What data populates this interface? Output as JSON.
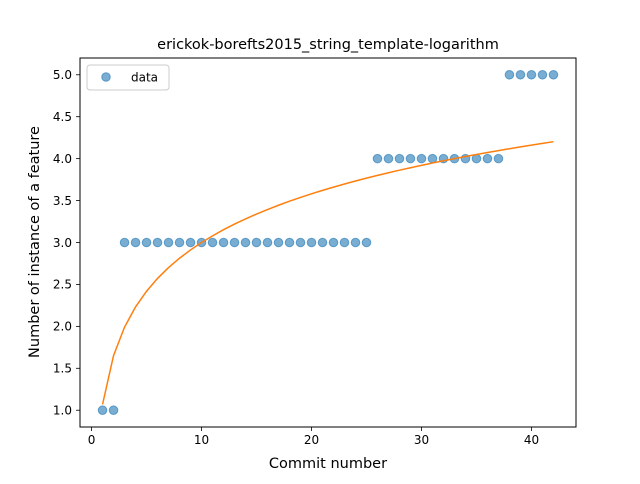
{
  "chart_data": {
    "type": "scatter",
    "title": "erickok-borefts2015_string_template-logarithm",
    "xlabel": "Commit number",
    "ylabel": "Number of instance of a feature",
    "xlim": [
      -1.05,
      44.05
    ],
    "ylim": [
      0.8,
      5.2
    ],
    "x_ticks": [
      0,
      10,
      20,
      30,
      40
    ],
    "y_ticks": [
      1.0,
      1.5,
      2.0,
      2.5,
      3.0,
      3.5,
      4.0,
      4.5,
      5.0
    ],
    "x_tick_labels": [
      "0",
      "10",
      "20",
      "30",
      "40"
    ],
    "y_tick_labels": [
      "1.0",
      "1.5",
      "2.0",
      "2.5",
      "3.0",
      "3.5",
      "4.0",
      "4.5",
      "5.0"
    ],
    "grid": false,
    "legend_position": "upper-left",
    "series": [
      {
        "name": "data",
        "kind": "scatter",
        "color": "#1f77b4",
        "x": [
          1,
          2,
          3,
          4,
          5,
          6,
          7,
          8,
          9,
          10,
          11,
          12,
          13,
          14,
          15,
          16,
          17,
          18,
          19,
          20,
          21,
          22,
          23,
          24,
          25,
          26,
          27,
          28,
          29,
          30,
          31,
          32,
          33,
          34,
          35,
          36,
          37,
          38,
          39,
          40,
          41,
          42
        ],
        "y": [
          1,
          1,
          3,
          3,
          3,
          3,
          3,
          3,
          3,
          3,
          3,
          3,
          3,
          3,
          3,
          3,
          3,
          3,
          3,
          3,
          3,
          3,
          3,
          3,
          3,
          4,
          4,
          4,
          4,
          4,
          4,
          4,
          4,
          4,
          4,
          4,
          4,
          5,
          5,
          5,
          5,
          5
        ]
      },
      {
        "kind": "line",
        "color": "#ff7f0e",
        "fit": "logarithmic",
        "a": 1.07,
        "b": 0.838,
        "x_range": [
          1,
          42
        ]
      }
    ]
  }
}
